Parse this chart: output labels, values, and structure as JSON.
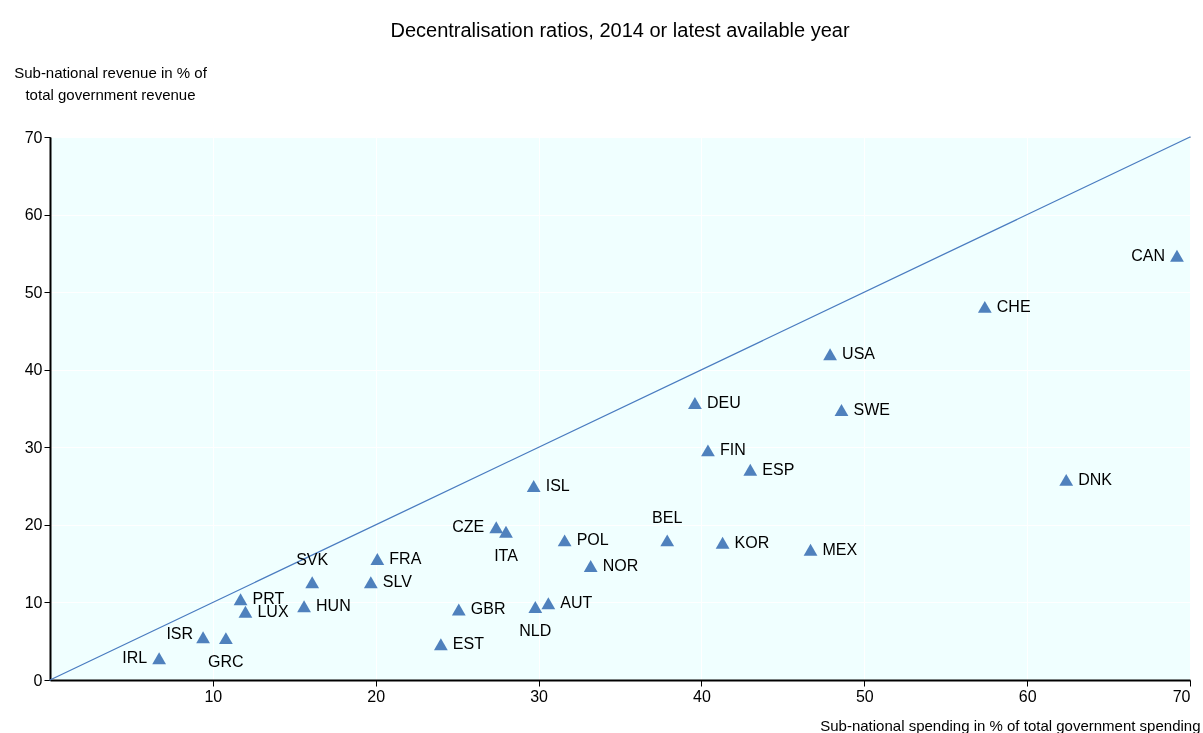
{
  "chart_data": {
    "type": "scatter",
    "title": "Decentralisation ratios, 2014 or latest available year",
    "xlabel": "Sub-national spending in % of total government spending",
    "ylabel": "Sub-national revenue in % of total government revenue",
    "xlim": [
      0,
      70
    ],
    "xticks": [
      10,
      20,
      30,
      40,
      50,
      60,
      70
    ],
    "ylim": [
      0,
      70
    ],
    "yticks": [
      0,
      10,
      20,
      30,
      40,
      50,
      60,
      70
    ],
    "grid": true,
    "marker": "triangle",
    "annotations": [
      {
        "text": "IRL",
        "x": 6.7,
        "y": 2.8
      },
      {
        "text": "ISR",
        "x": 9.4,
        "y": 5.5
      },
      {
        "text": "GRC",
        "x": 10.8,
        "y": 5.4
      },
      {
        "text": "PRT",
        "x": 11.7,
        "y": 10.4
      },
      {
        "text": "LUX",
        "x": 12.0,
        "y": 8.8
      },
      {
        "text": "HUN",
        "x": 15.6,
        "y": 9.5
      },
      {
        "text": "SVK",
        "x": 16.1,
        "y": 12.6
      },
      {
        "text": "SLV",
        "x": 19.7,
        "y": 12.6
      },
      {
        "text": "FRA",
        "x": 20.1,
        "y": 15.6
      },
      {
        "text": "EST",
        "x": 24.0,
        "y": 4.6
      },
      {
        "text": "GBR",
        "x": 25.1,
        "y": 9.1
      },
      {
        "text": "CZE",
        "x": 27.4,
        "y": 19.7
      },
      {
        "text": "ITA",
        "x": 28.0,
        "y": 19.1
      },
      {
        "text": "ISL",
        "x": 29.7,
        "y": 25.0
      },
      {
        "text": "NLD",
        "x": 29.8,
        "y": 9.4
      },
      {
        "text": "AUT",
        "x": 30.6,
        "y": 9.9
      },
      {
        "text": "POL",
        "x": 31.6,
        "y": 18.0
      },
      {
        "text": "NOR",
        "x": 33.2,
        "y": 14.7
      },
      {
        "text": "BEL",
        "x": 37.9,
        "y": 18.0
      },
      {
        "text": "DEU",
        "x": 39.6,
        "y": 35.7
      },
      {
        "text": "FIN",
        "x": 40.4,
        "y": 29.6
      },
      {
        "text": "KOR",
        "x": 41.3,
        "y": 17.7
      },
      {
        "text": "ESP",
        "x": 43.0,
        "y": 27.1
      },
      {
        "text": "MEX",
        "x": 46.7,
        "y": 16.8
      },
      {
        "text": "USA",
        "x": 47.9,
        "y": 42.0
      },
      {
        "text": "SWE",
        "x": 48.6,
        "y": 34.8
      },
      {
        "text": "CHE",
        "x": 57.4,
        "y": 48.1
      },
      {
        "text": "DNK",
        "x": 62.4,
        "y": 25.8
      },
      {
        "text": "CAN",
        "x": 69.2,
        "y": 54.7
      }
    ],
    "series": [
      {
        "color": "#4f81bd",
        "x": [
          6.7,
          9.4,
          10.8,
          11.7,
          12.0,
          15.6,
          16.1,
          19.7,
          20.1,
          24.0,
          25.1,
          27.4,
          28.0,
          29.7,
          29.8,
          30.6,
          31.6,
          33.2,
          37.9,
          39.6,
          40.4,
          41.3,
          43.0,
          46.7,
          47.9,
          48.6,
          57.4,
          62.4,
          69.2
        ],
        "values": [
          2.8,
          5.5,
          5.4,
          10.4,
          8.8,
          9.5,
          12.6,
          12.6,
          15.6,
          4.6,
          9.1,
          19.7,
          19.1,
          25.0,
          9.4,
          9.9,
          18.0,
          14.7,
          18.0,
          35.7,
          29.6,
          17.7,
          27.1,
          16.8,
          42.0,
          34.8,
          48.1,
          25.8,
          54.7
        ]
      },
      {
        "type": "line",
        "color": "#4a7cc0",
        "x": [
          0,
          70
        ],
        "values": [
          0,
          70
        ],
        "marker": "none"
      }
    ]
  }
}
